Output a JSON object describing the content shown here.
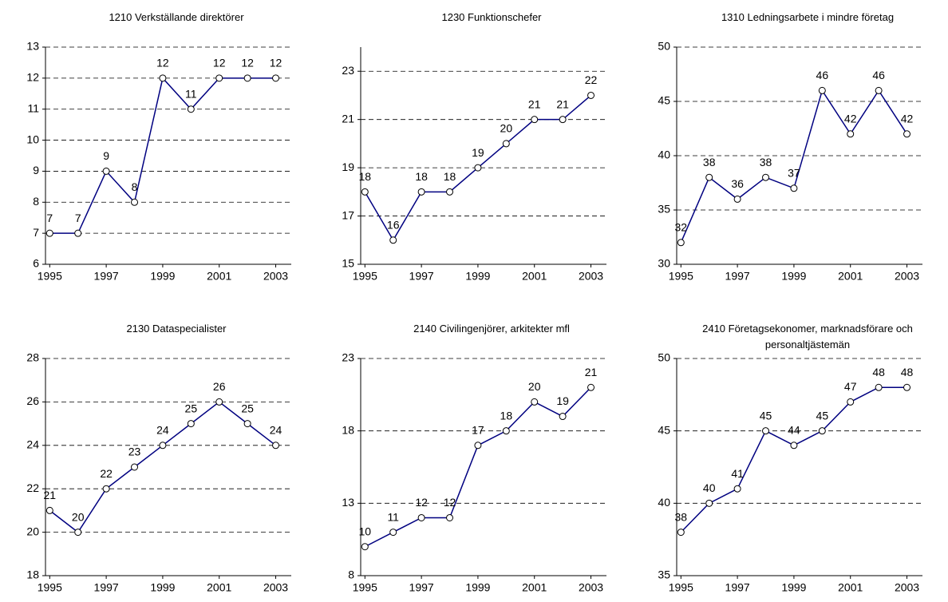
{
  "chart_data": [
    {
      "type": "line",
      "title": "1210 Verkställande direktörer",
      "x": [
        1995,
        1996,
        1997,
        1998,
        1999,
        2000,
        2001,
        2002,
        2003
      ],
      "series": [
        {
          "color": "#000080",
          "values": [
            7,
            7,
            9,
            8,
            12,
            11,
            12,
            12,
            12
          ]
        }
      ],
      "xlim": [
        1994.85,
        2003.55
      ],
      "xticks": [
        1995,
        1997,
        1999,
        2001,
        2003
      ],
      "ylim": [
        6,
        13
      ],
      "yticks": [
        6,
        7,
        8,
        9,
        10,
        11,
        12,
        13
      ],
      "grid": true
    },
    {
      "type": "line",
      "title": "1230 Funktionschefer",
      "x": [
        1995,
        1996,
        1997,
        1998,
        1999,
        2000,
        2001,
        2002,
        2003
      ],
      "series": [
        {
          "color": "#000080",
          "values": [
            18,
            16,
            18,
            18,
            19,
            20,
            21,
            21,
            22
          ]
        }
      ],
      "xlim": [
        1994.85,
        2003.55
      ],
      "xticks": [
        1995,
        1997,
        1999,
        2001,
        2003
      ],
      "ylim": [
        15,
        24
      ],
      "yticks": [
        15,
        17,
        19,
        21,
        23
      ],
      "grid": true
    },
    {
      "type": "line",
      "title": "1310  Ledningsarbete i mindre företag",
      "x": [
        1995,
        1996,
        1997,
        1998,
        1999,
        2000,
        2001,
        2002,
        2003
      ],
      "series": [
        {
          "color": "#000080",
          "values": [
            32,
            38,
            36,
            38,
            37,
            46,
            42,
            46,
            42
          ]
        }
      ],
      "xlim": [
        1994.85,
        2003.55
      ],
      "xticks": [
        1995,
        1997,
        1999,
        2001,
        2003
      ],
      "ylim": [
        30,
        50
      ],
      "yticks": [
        30,
        35,
        40,
        45,
        50
      ],
      "grid": true
    },
    {
      "type": "line",
      "title": "2130 Dataspecialister",
      "x": [
        1995,
        1996,
        1997,
        1998,
        1999,
        2000,
        2001,
        2002,
        2003
      ],
      "series": [
        {
          "color": "#000080",
          "values": [
            21,
            20,
            22,
            23,
            24,
            25,
            26,
            25,
            24
          ]
        }
      ],
      "xlim": [
        1994.85,
        2003.55
      ],
      "xticks": [
        1995,
        1997,
        1999,
        2001,
        2003
      ],
      "ylim": [
        18,
        28
      ],
      "yticks": [
        18,
        20,
        22,
        24,
        26,
        28
      ],
      "grid": true
    },
    {
      "type": "line",
      "title": "2140 Civilingenjörer, arkitekter mfl",
      "x": [
        1995,
        1996,
        1997,
        1998,
        1999,
        2000,
        2001,
        2002,
        2003
      ],
      "series": [
        {
          "color": "#000080",
          "values": [
            10,
            11,
            12,
            12,
            17,
            18,
            20,
            19,
            21
          ]
        }
      ],
      "xlim": [
        1994.85,
        2003.55
      ],
      "xticks": [
        1995,
        1997,
        1999,
        2001,
        2003
      ],
      "ylim": [
        8,
        23
      ],
      "yticks": [
        8,
        13,
        18,
        23
      ],
      "grid": true
    },
    {
      "type": "line",
      "title": "2410 Företagsekonomer, marknadsförare och personaltjästemän",
      "x": [
        1995,
        1996,
        1997,
        1998,
        1999,
        2000,
        2001,
        2002,
        2003
      ],
      "series": [
        {
          "color": "#000080",
          "values": [
            38,
            40,
            41,
            45,
            44,
            45,
            47,
            48,
            48
          ]
        }
      ],
      "xlim": [
        1994.85,
        2003.55
      ],
      "xticks": [
        1995,
        1997,
        1999,
        2001,
        2003
      ],
      "ylim": [
        35,
        50
      ],
      "yticks": [
        35,
        40,
        45,
        50
      ],
      "grid": true
    }
  ]
}
